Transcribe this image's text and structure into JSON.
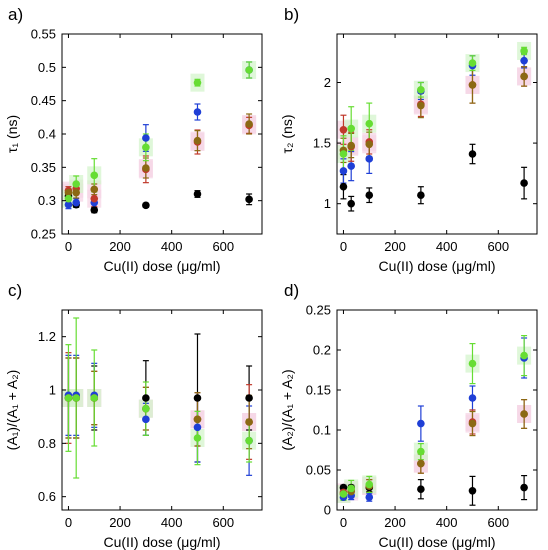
{
  "colors": {
    "series_black": "#000000",
    "series_blue": "#1f3fd6",
    "series_red": "#c0392b",
    "series_brown": "#8b6914",
    "series_green": "#66dd33",
    "shade_pink": "#f6d6e6",
    "shade_green": "#d4f4cc"
  },
  "chart_data": [
    {
      "panel": "a)",
      "type": "scatter",
      "xlabel": "Cu(II) dose (μg/ml)",
      "ylabel": "τ₁ (ns)",
      "xlim": [
        -25,
        750
      ],
      "ylim": [
        0.25,
        0.55
      ],
      "xticks": [
        "0",
        "200",
        "400",
        "600"
      ],
      "yticks": [
        "0.25",
        "0.3",
        "0.35",
        "0.4",
        "0.45",
        "0.5",
        "0.55"
      ],
      "x": [
        0,
        30,
        100,
        300,
        500,
        700
      ],
      "series": [
        {
          "color": "black",
          "values": [
            0.307,
            0.294,
            0.286,
            0.293,
            0.31,
            0.302
          ],
          "errors": [
            0.005,
            0.004,
            0.004,
            0.003,
            0.005,
            0.008
          ]
        },
        {
          "color": "blue",
          "values": [
            0.294,
            0.297,
            0.297,
            0.394,
            0.433,
            0.496
          ],
          "errors": [
            0.006,
            0.006,
            0.008,
            0.02,
            0.012,
            0.012
          ]
        },
        {
          "color": "red",
          "values": [
            0.315,
            0.318,
            0.303,
            0.347,
            0.388,
            0.413
          ],
          "errors": [
            0.006,
            0.008,
            0.012,
            0.02,
            0.018,
            0.012
          ]
        },
        {
          "color": "brown",
          "values": [
            0.312,
            0.312,
            0.317,
            0.349,
            0.39,
            0.415
          ],
          "errors": [
            0.006,
            0.008,
            0.008,
            0.015,
            0.015,
            0.015
          ]
        },
        {
          "color": "green",
          "values": [
            0.303,
            0.325,
            0.338,
            0.38,
            0.477,
            0.496
          ],
          "errors": [
            0.012,
            0.012,
            0.025,
            0.02,
            0.005,
            0.012
          ]
        }
      ]
    },
    {
      "panel": "b)",
      "type": "scatter",
      "xlabel": "Cu(II) dose (μg/ml)",
      "ylabel": "τ₂ (ns)",
      "xlim": [
        -25,
        750
      ],
      "ylim": [
        0.75,
        2.4
      ],
      "xticks": [
        "0",
        "200",
        "400",
        "600"
      ],
      "yticks": [
        "1",
        "1.5",
        "2"
      ],
      "x": [
        0,
        30,
        100,
        300,
        500,
        700
      ],
      "series": [
        {
          "color": "black",
          "values": [
            1.14,
            1.0,
            1.07,
            1.07,
            1.41,
            1.17
          ],
          "errors": [
            0.1,
            0.06,
            0.06,
            0.07,
            0.08,
            0.13
          ]
        },
        {
          "color": "blue",
          "values": [
            1.27,
            1.31,
            1.37,
            1.93,
            2.14,
            2.18
          ],
          "errors": [
            0.1,
            0.12,
            0.12,
            0.07,
            0.08,
            0.06
          ]
        },
        {
          "color": "red",
          "values": [
            1.61,
            1.47,
            1.51,
            1.82,
            1.98,
            2.05
          ],
          "errors": [
            0.12,
            0.12,
            0.1,
            0.1,
            0.15,
            0.08
          ]
        },
        {
          "color": "brown",
          "values": [
            1.44,
            1.48,
            1.49,
            1.81,
            1.98,
            2.05
          ],
          "errors": [
            0.1,
            0.1,
            0.1,
            0.1,
            0.15,
            0.08
          ]
        },
        {
          "color": "green",
          "values": [
            1.41,
            1.62,
            1.66,
            1.94,
            2.16,
            2.26
          ],
          "errors": [
            0.15,
            0.18,
            0.17,
            0.06,
            0.06,
            0.03
          ]
        }
      ]
    },
    {
      "panel": "c)",
      "type": "scatter",
      "xlabel": "Cu(II) dose (μg/ml)",
      "ylabel": "(A₁)/(A₁ + A₂)",
      "xlim": [
        -25,
        750
      ],
      "ylim": [
        0.55,
        1.3
      ],
      "xticks": [
        "0",
        "200",
        "400",
        "600"
      ],
      "yticks": [
        "0.6",
        "0.8",
        "1",
        "1.2"
      ],
      "x": [
        0,
        30,
        100,
        300,
        500,
        700
      ],
      "series": [
        {
          "color": "black",
          "values": [
            0.97,
            0.97,
            0.97,
            0.97,
            0.97,
            0.97
          ],
          "errors": [
            0.15,
            0.15,
            0.12,
            0.14,
            0.24,
            0.12
          ]
        },
        {
          "color": "blue",
          "values": [
            0.98,
            0.98,
            0.98,
            0.89,
            0.86,
            0.81
          ],
          "errors": [
            0.15,
            0.15,
            0.12,
            0.06,
            0.13,
            0.13
          ]
        },
        {
          "color": "red",
          "values": [
            0.97,
            0.97,
            0.97,
            0.93,
            0.89,
            0.88
          ],
          "errors": [
            0.17,
            0.15,
            0.1,
            0.08,
            0.1,
            0.14
          ]
        },
        {
          "color": "brown",
          "values": [
            0.97,
            0.97,
            0.97,
            0.93,
            0.89,
            0.88
          ],
          "errors": [
            0.15,
            0.15,
            0.1,
            0.08,
            0.1,
            0.1
          ]
        },
        {
          "color": "green",
          "values": [
            0.97,
            0.97,
            0.97,
            0.93,
            0.82,
            0.81
          ],
          "errors": [
            0.2,
            0.3,
            0.18,
            0.1,
            0.1,
            0.08
          ]
        }
      ]
    },
    {
      "panel": "d)",
      "type": "scatter",
      "xlabel": "Cu(II) dose (μg/ml)",
      "ylabel": "(A₂)/(A₁ + A₂)",
      "xlim": [
        -25,
        750
      ],
      "ylim": [
        0,
        0.25
      ],
      "xticks": [
        "0",
        "200",
        "400",
        "600"
      ],
      "yticks": [
        "0",
        "0.05",
        "0.1",
        "0.15",
        "0.2",
        "0.25"
      ],
      "x": [
        0,
        30,
        100,
        300,
        500,
        700
      ],
      "series": [
        {
          "color": "black",
          "values": [
            0.028,
            0.028,
            0.028,
            0.026,
            0.024,
            0.028
          ],
          "errors": [
            0.003,
            0.003,
            0.005,
            0.012,
            0.018,
            0.015
          ]
        },
        {
          "color": "blue",
          "values": [
            0.016,
            0.018,
            0.016,
            0.108,
            0.14,
            0.19
          ],
          "errors": [
            0.004,
            0.005,
            0.005,
            0.022,
            0.015,
            0.025
          ]
        },
        {
          "color": "red",
          "values": [
            0.022,
            0.025,
            0.03,
            0.058,
            0.11,
            0.12
          ],
          "errors": [
            0.005,
            0.005,
            0.008,
            0.012,
            0.015,
            0.018
          ]
        },
        {
          "color": "brown",
          "values": [
            0.02,
            0.023,
            0.03,
            0.058,
            0.108,
            0.12
          ],
          "errors": [
            0.005,
            0.005,
            0.008,
            0.012,
            0.015,
            0.018
          ]
        },
        {
          "color": "green",
          "values": [
            0.02,
            0.027,
            0.032,
            0.073,
            0.183,
            0.193
          ],
          "errors": [
            0.008,
            0.01,
            0.01,
            0.01,
            0.025,
            0.025
          ]
        }
      ]
    }
  ]
}
